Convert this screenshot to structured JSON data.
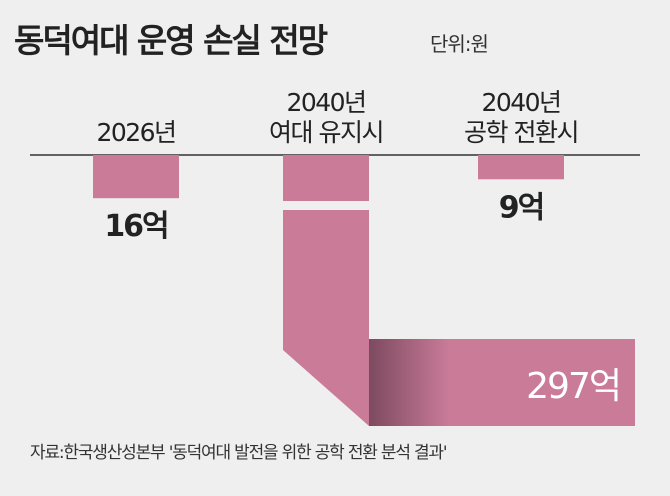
{
  "chart_data": {
    "type": "bar",
    "title": "동덕여대 운영 손실 전망",
    "unit_label": "단위:원",
    "categories": [
      [
        "2026년"
      ],
      [
        "2040년",
        "여대 유지시"
      ],
      [
        "2040년",
        "공학 전환시"
      ]
    ],
    "values": [
      16,
      297,
      9
    ],
    "value_unit": "억",
    "data_labels": [
      "16억",
      "297억",
      "9억"
    ],
    "bar_color": "#c97b98",
    "axis_broken_for": "297억",
    "grid": false,
    "source": "자료:한국생산성본부 '동덕여대 발전을 위한 공학 전환 분석 결과'"
  }
}
